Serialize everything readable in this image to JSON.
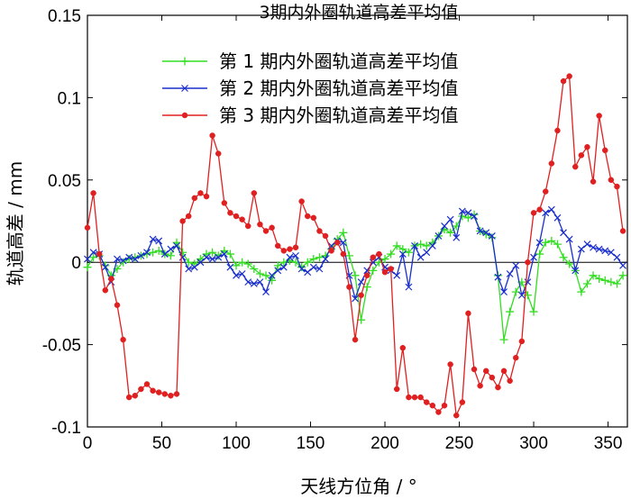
{
  "chart_data": {
    "type": "line",
    "title": "3期内外圈轨道高差平均值",
    "xlabel": "天线方位角 / °",
    "ylabel": "轨道高差 / mm",
    "xlim": [
      0,
      363
    ],
    "ylim": [
      -0.1,
      0.15
    ],
    "xticks": [
      0,
      50,
      100,
      150,
      200,
      250,
      300,
      350
    ],
    "yticks": [
      -0.1,
      -0.05,
      0,
      0.05,
      0.1,
      0.15
    ],
    "ytick_labels": [
      "-0.1",
      "-0.05",
      "0",
      "0.05",
      "0.1",
      "0.15"
    ],
    "zero_line": true,
    "legend_position": "top-center",
    "series": [
      {
        "name": "第 1 期内外圈轨道高差平均值",
        "color": "#33dd22",
        "marker": "plus",
        "x": [
          0,
          4,
          8,
          12,
          16,
          20,
          24,
          28,
          32,
          36,
          40,
          44,
          48,
          52,
          56,
          60,
          64,
          68,
          72,
          76,
          80,
          84,
          88,
          92,
          96,
          100,
          104,
          108,
          112,
          116,
          120,
          124,
          128,
          132,
          136,
          140,
          144,
          148,
          152,
          156,
          160,
          164,
          168,
          172,
          176,
          180,
          184,
          188,
          192,
          196,
          200,
          204,
          208,
          212,
          216,
          220,
          224,
          228,
          232,
          236,
          240,
          244,
          248,
          252,
          256,
          260,
          264,
          268,
          272,
          276,
          280,
          284,
          288,
          292,
          296,
          300,
          304,
          308,
          312,
          316,
          320,
          324,
          328,
          332,
          336,
          340,
          344,
          348,
          352,
          356,
          360
        ],
        "y": [
          -0.003,
          0.003,
          0.004,
          -0.002,
          -0.008,
          -0.004,
          0.0,
          0.002,
          0.003,
          0.004,
          0.005,
          0.006,
          0.007,
          0.005,
          0.004,
          0.012,
          0.006,
          0.0,
          -0.001,
          0.002,
          0.005,
          0.006,
          0.004,
          0.007,
          0.005,
          -0.002,
          0.0,
          -0.001,
          -0.004,
          -0.007,
          -0.008,
          -0.011,
          -0.002,
          0.0,
          0.001,
          0.0,
          -0.003,
          0.0,
          0.002,
          0.003,
          0.004,
          0.008,
          0.014,
          0.018,
          0.004,
          -0.008,
          -0.035,
          -0.015,
          -0.005,
          0.0,
          0.002,
          0.005,
          0.01,
          0.008,
          0.006,
          0.01,
          0.011,
          0.01,
          0.012,
          0.016,
          0.02,
          0.018,
          0.022,
          0.028,
          0.027,
          0.029,
          0.019,
          0.017,
          0.015,
          -0.008,
          -0.047,
          -0.03,
          -0.018,
          -0.012,
          -0.02,
          -0.03,
          0.005,
          0.012,
          0.013,
          0.011,
          0.003,
          -0.001,
          -0.005,
          -0.018,
          -0.013,
          -0.008,
          -0.01,
          -0.011,
          -0.012,
          -0.013,
          -0.008
        ]
      },
      {
        "name": "第 2 期内外圈轨道高差平均值",
        "color": "#1a2ecc",
        "marker": "x",
        "x": [
          0,
          4,
          8,
          12,
          16,
          20,
          24,
          28,
          32,
          36,
          40,
          44,
          48,
          52,
          56,
          60,
          64,
          68,
          72,
          76,
          80,
          84,
          88,
          92,
          96,
          100,
          104,
          108,
          112,
          116,
          120,
          124,
          128,
          132,
          136,
          140,
          144,
          148,
          152,
          156,
          160,
          164,
          168,
          172,
          176,
          180,
          184,
          188,
          192,
          196,
          200,
          204,
          208,
          212,
          216,
          220,
          224,
          228,
          232,
          236,
          240,
          244,
          248,
          252,
          256,
          260,
          264,
          268,
          272,
          276,
          280,
          284,
          288,
          292,
          296,
          300,
          304,
          308,
          312,
          316,
          320,
          324,
          328,
          332,
          336,
          340,
          344,
          348,
          352,
          356,
          360
        ],
        "y": [
          0.002,
          0.006,
          0.005,
          -0.003,
          -0.012,
          0.002,
          0.001,
          0.003,
          0.002,
          0.004,
          0.006,
          0.014,
          0.013,
          0.005,
          0.008,
          0.01,
          0.003,
          -0.004,
          -0.003,
          0.0,
          0.003,
          0.002,
          0.003,
          0.005,
          -0.003,
          -0.008,
          -0.007,
          -0.012,
          -0.013,
          -0.012,
          -0.018,
          -0.008,
          -0.005,
          -0.003,
          0.003,
          0.004,
          -0.004,
          -0.006,
          -0.003,
          -0.004,
          0.002,
          0.01,
          0.013,
          0.012,
          -0.008,
          -0.022,
          -0.012,
          -0.005,
          0.0,
          0.003,
          -0.003,
          -0.005,
          -0.008,
          0.005,
          -0.015,
          0.01,
          0.003,
          0.006,
          0.01,
          0.016,
          0.022,
          0.026,
          0.015,
          0.031,
          0.03,
          0.028,
          0.019,
          0.018,
          0.016,
          -0.009,
          -0.018,
          -0.007,
          -0.002,
          -0.02,
          -0.012,
          0.003,
          0.012,
          0.03,
          0.032,
          0.027,
          0.018,
          0.014,
          -0.005,
          0.008,
          0.011,
          0.009,
          0.008,
          0.007,
          0.006,
          0.003,
          -0.002
        ]
      },
      {
        "name": "第 3 期内外圈轨道高差平均值",
        "color": "#e02020",
        "marker": "dot",
        "x": [
          0,
          4,
          8,
          12,
          16,
          20,
          24,
          28,
          32,
          36,
          40,
          44,
          48,
          52,
          56,
          60,
          64,
          68,
          72,
          76,
          80,
          84,
          88,
          92,
          96,
          100,
          104,
          108,
          112,
          116,
          120,
          124,
          128,
          132,
          136,
          140,
          144,
          148,
          152,
          156,
          160,
          164,
          168,
          172,
          176,
          180,
          184,
          188,
          192,
          196,
          200,
          204,
          208,
          212,
          216,
          220,
          224,
          228,
          232,
          236,
          240,
          244,
          248,
          252,
          256,
          260,
          264,
          268,
          272,
          276,
          280,
          284,
          288,
          292,
          296,
          300,
          304,
          308,
          312,
          316,
          320,
          324,
          328,
          332,
          336,
          340,
          344,
          348,
          352,
          356,
          360
        ],
        "y": [
          0.021,
          0.042,
          0.005,
          -0.017,
          -0.01,
          -0.026,
          -0.047,
          -0.082,
          -0.081,
          -0.077,
          -0.074,
          -0.078,
          -0.079,
          -0.08,
          -0.081,
          -0.08,
          0.025,
          0.028,
          0.039,
          0.042,
          0.04,
          0.077,
          0.066,
          0.036,
          0.03,
          0.028,
          0.026,
          0.022,
          0.042,
          0.023,
          0.019,
          0.021,
          0.01,
          0.007,
          0.008,
          0.009,
          0.037,
          0.028,
          0.027,
          0.019,
          0.016,
          0.007,
          0.012,
          0.005,
          -0.015,
          -0.047,
          -0.02,
          -0.008,
          0.003,
          0.005,
          -0.006,
          -0.004,
          -0.077,
          -0.052,
          -0.082,
          -0.082,
          -0.082,
          -0.085,
          -0.087,
          -0.091,
          -0.087,
          -0.062,
          -0.093,
          -0.085,
          -0.031,
          -0.065,
          -0.075,
          -0.066,
          -0.07,
          -0.076,
          -0.066,
          -0.072,
          -0.058,
          -0.048,
          0.0,
          0.03,
          0.032,
          0.043,
          0.06,
          0.08,
          0.11,
          0.113,
          0.058,
          0.065,
          0.07,
          0.049,
          0.089,
          0.068,
          0.05,
          0.046,
          0.019
        ]
      }
    ]
  }
}
